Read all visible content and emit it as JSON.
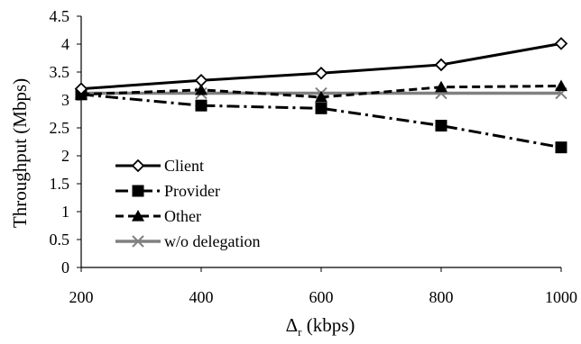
{
  "chart_data": {
    "type": "line",
    "x": [
      200,
      400,
      600,
      800,
      1000
    ],
    "xlim": [
      200,
      1000
    ],
    "ylim": [
      0,
      4.5
    ],
    "x_ticks": [
      "200",
      "400",
      "600",
      "800",
      "1000"
    ],
    "y_ticks": [
      "0",
      "0.5",
      "1",
      "1.5",
      "2",
      "2.5",
      "3",
      "3.5",
      "4",
      "4.5"
    ],
    "xlabel_main": "Δ",
    "xlabel_sub": "r",
    "xlabel_rest": " (kbps)",
    "ylabel": "Throughput (Mbps)",
    "grid": false,
    "legend_position": "bottom-left",
    "series": [
      {
        "name": "Client",
        "values": [
          3.2,
          3.35,
          3.48,
          3.63,
          4.01
        ],
        "color": "#000000",
        "dash": "solid",
        "marker": "diamond"
      },
      {
        "name": "Provider",
        "values": [
          3.1,
          2.9,
          2.85,
          2.54,
          2.15
        ],
        "color": "#000000",
        "dash": "dashdot",
        "marker": "square"
      },
      {
        "name": "Other",
        "values": [
          3.1,
          3.18,
          3.05,
          3.23,
          3.25
        ],
        "color": "#000000",
        "dash": "dashed",
        "marker": "triangle"
      },
      {
        "name": "w/o delegation",
        "values": [
          3.12,
          3.12,
          3.12,
          3.12,
          3.12
        ],
        "color": "#808080",
        "dash": "solid",
        "marker": "x"
      }
    ]
  }
}
